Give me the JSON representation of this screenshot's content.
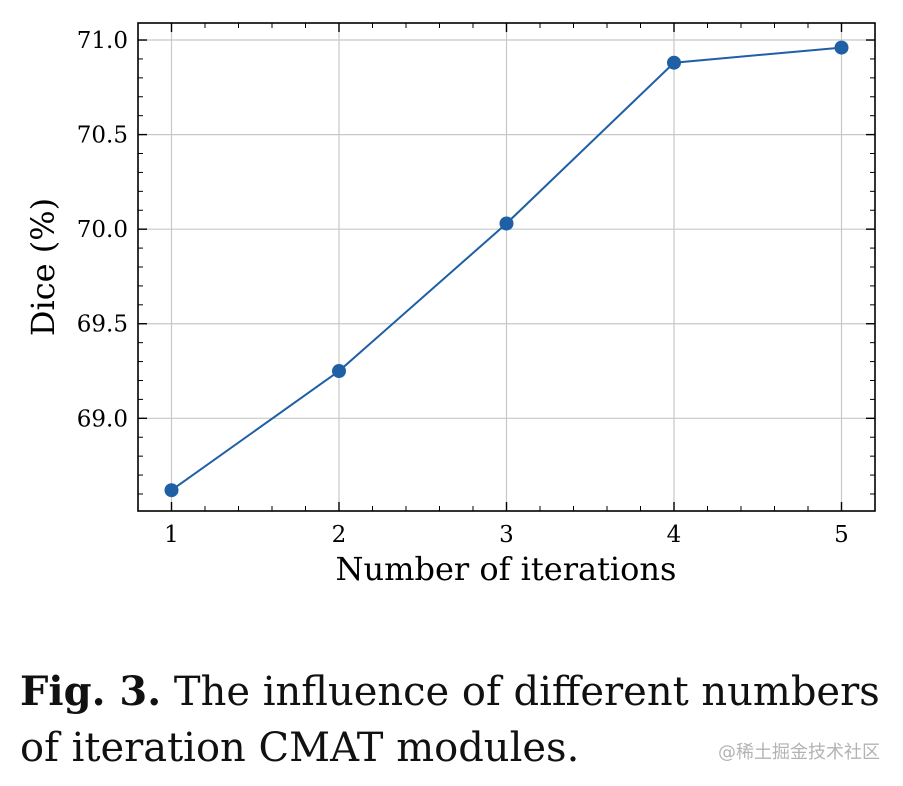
{
  "chart_data": {
    "type": "line",
    "title": "",
    "xlabel": "Number of iterations",
    "ylabel": "Dice (%)",
    "x": [
      1,
      2,
      3,
      4,
      5
    ],
    "series": [
      {
        "values": [
          68.62,
          69.25,
          70.03,
          70.88,
          70.96
        ],
        "color": "#1f5fa5"
      }
    ],
    "xticks": [
      "1",
      "2",
      "3",
      "4",
      "5"
    ],
    "yticks": [
      "69.0",
      "69.5",
      "70.0",
      "70.5",
      "71.0"
    ],
    "ytick_values": [
      69.0,
      69.5,
      70.0,
      70.5,
      71.0
    ],
    "xlim": [
      0.8,
      5.2
    ],
    "ylim": [
      68.51,
      71.09
    ],
    "grid": true,
    "marker": "circle"
  },
  "caption": {
    "label": "Fig. 3.",
    "text": " The influence of different numbers of iteration CMAT modules."
  },
  "watermark": "@稀土掘金技术社区"
}
